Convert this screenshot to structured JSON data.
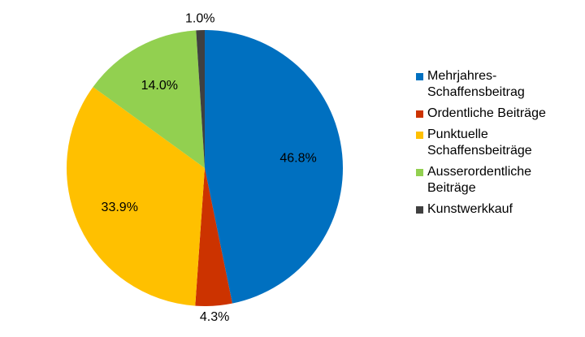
{
  "chart_data": {
    "type": "pie",
    "categories": [
      "Mehrjahres-Schaffensbeitrag",
      "Ordentliche Beiträge",
      "Punktuelle Schaffensbeiträge",
      "Ausserordentliche Beiträge",
      "Kunstwerkkauf"
    ],
    "values": [
      46.8,
      4.3,
      33.9,
      14.0,
      1.0
    ],
    "value_labels": [
      "46.8%",
      "4.3%",
      "33.9%",
      "14.0%",
      "1.0%"
    ],
    "colors": [
      "#0070c0",
      "#cc3300",
      "#ffc000",
      "#92d050",
      "#404040"
    ],
    "legend": "right"
  }
}
